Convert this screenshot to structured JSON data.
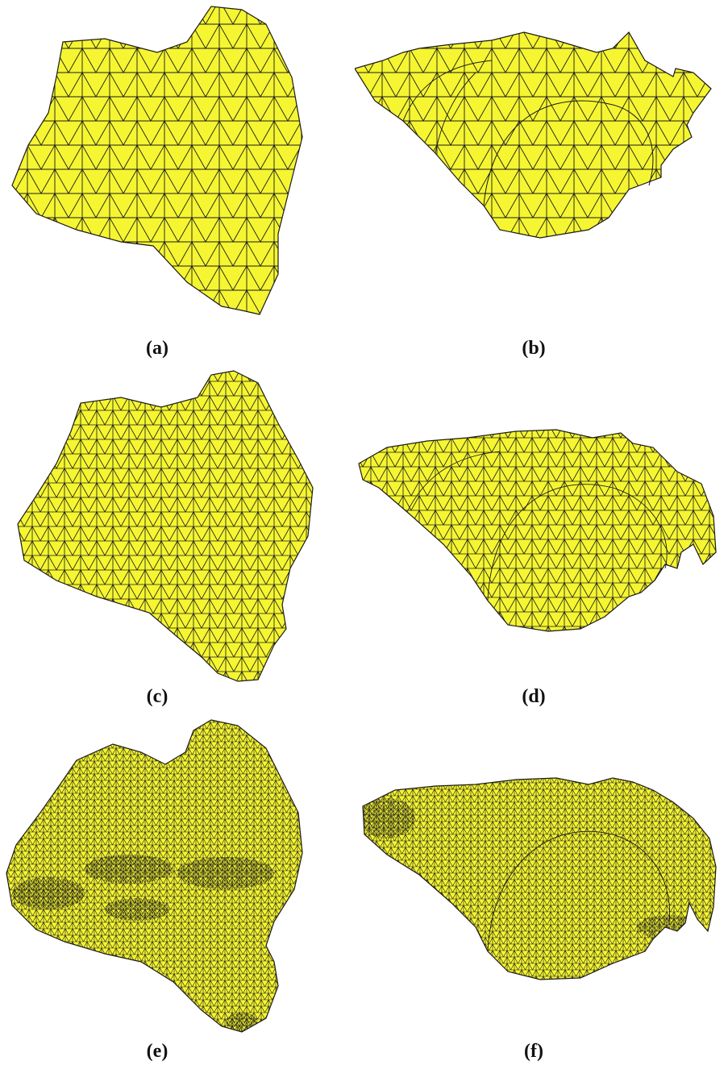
{
  "colors": {
    "mesh_fill": "#f5f532",
    "mesh_edge": "#1a1a1a",
    "background": "#ffffff"
  },
  "panels": [
    {
      "id": "a",
      "caption": "(a)",
      "view": "front",
      "density": "coarse"
    },
    {
      "id": "b",
      "caption": "(b)",
      "view": "side",
      "density": "coarse"
    },
    {
      "id": "c",
      "caption": "(c)",
      "view": "front",
      "density": "medium"
    },
    {
      "id": "d",
      "caption": "(d)",
      "view": "side",
      "density": "medium"
    },
    {
      "id": "e",
      "caption": "(e)",
      "view": "front",
      "density": "fine"
    },
    {
      "id": "f",
      "caption": "(f)",
      "view": "side",
      "density": "fine"
    }
  ]
}
